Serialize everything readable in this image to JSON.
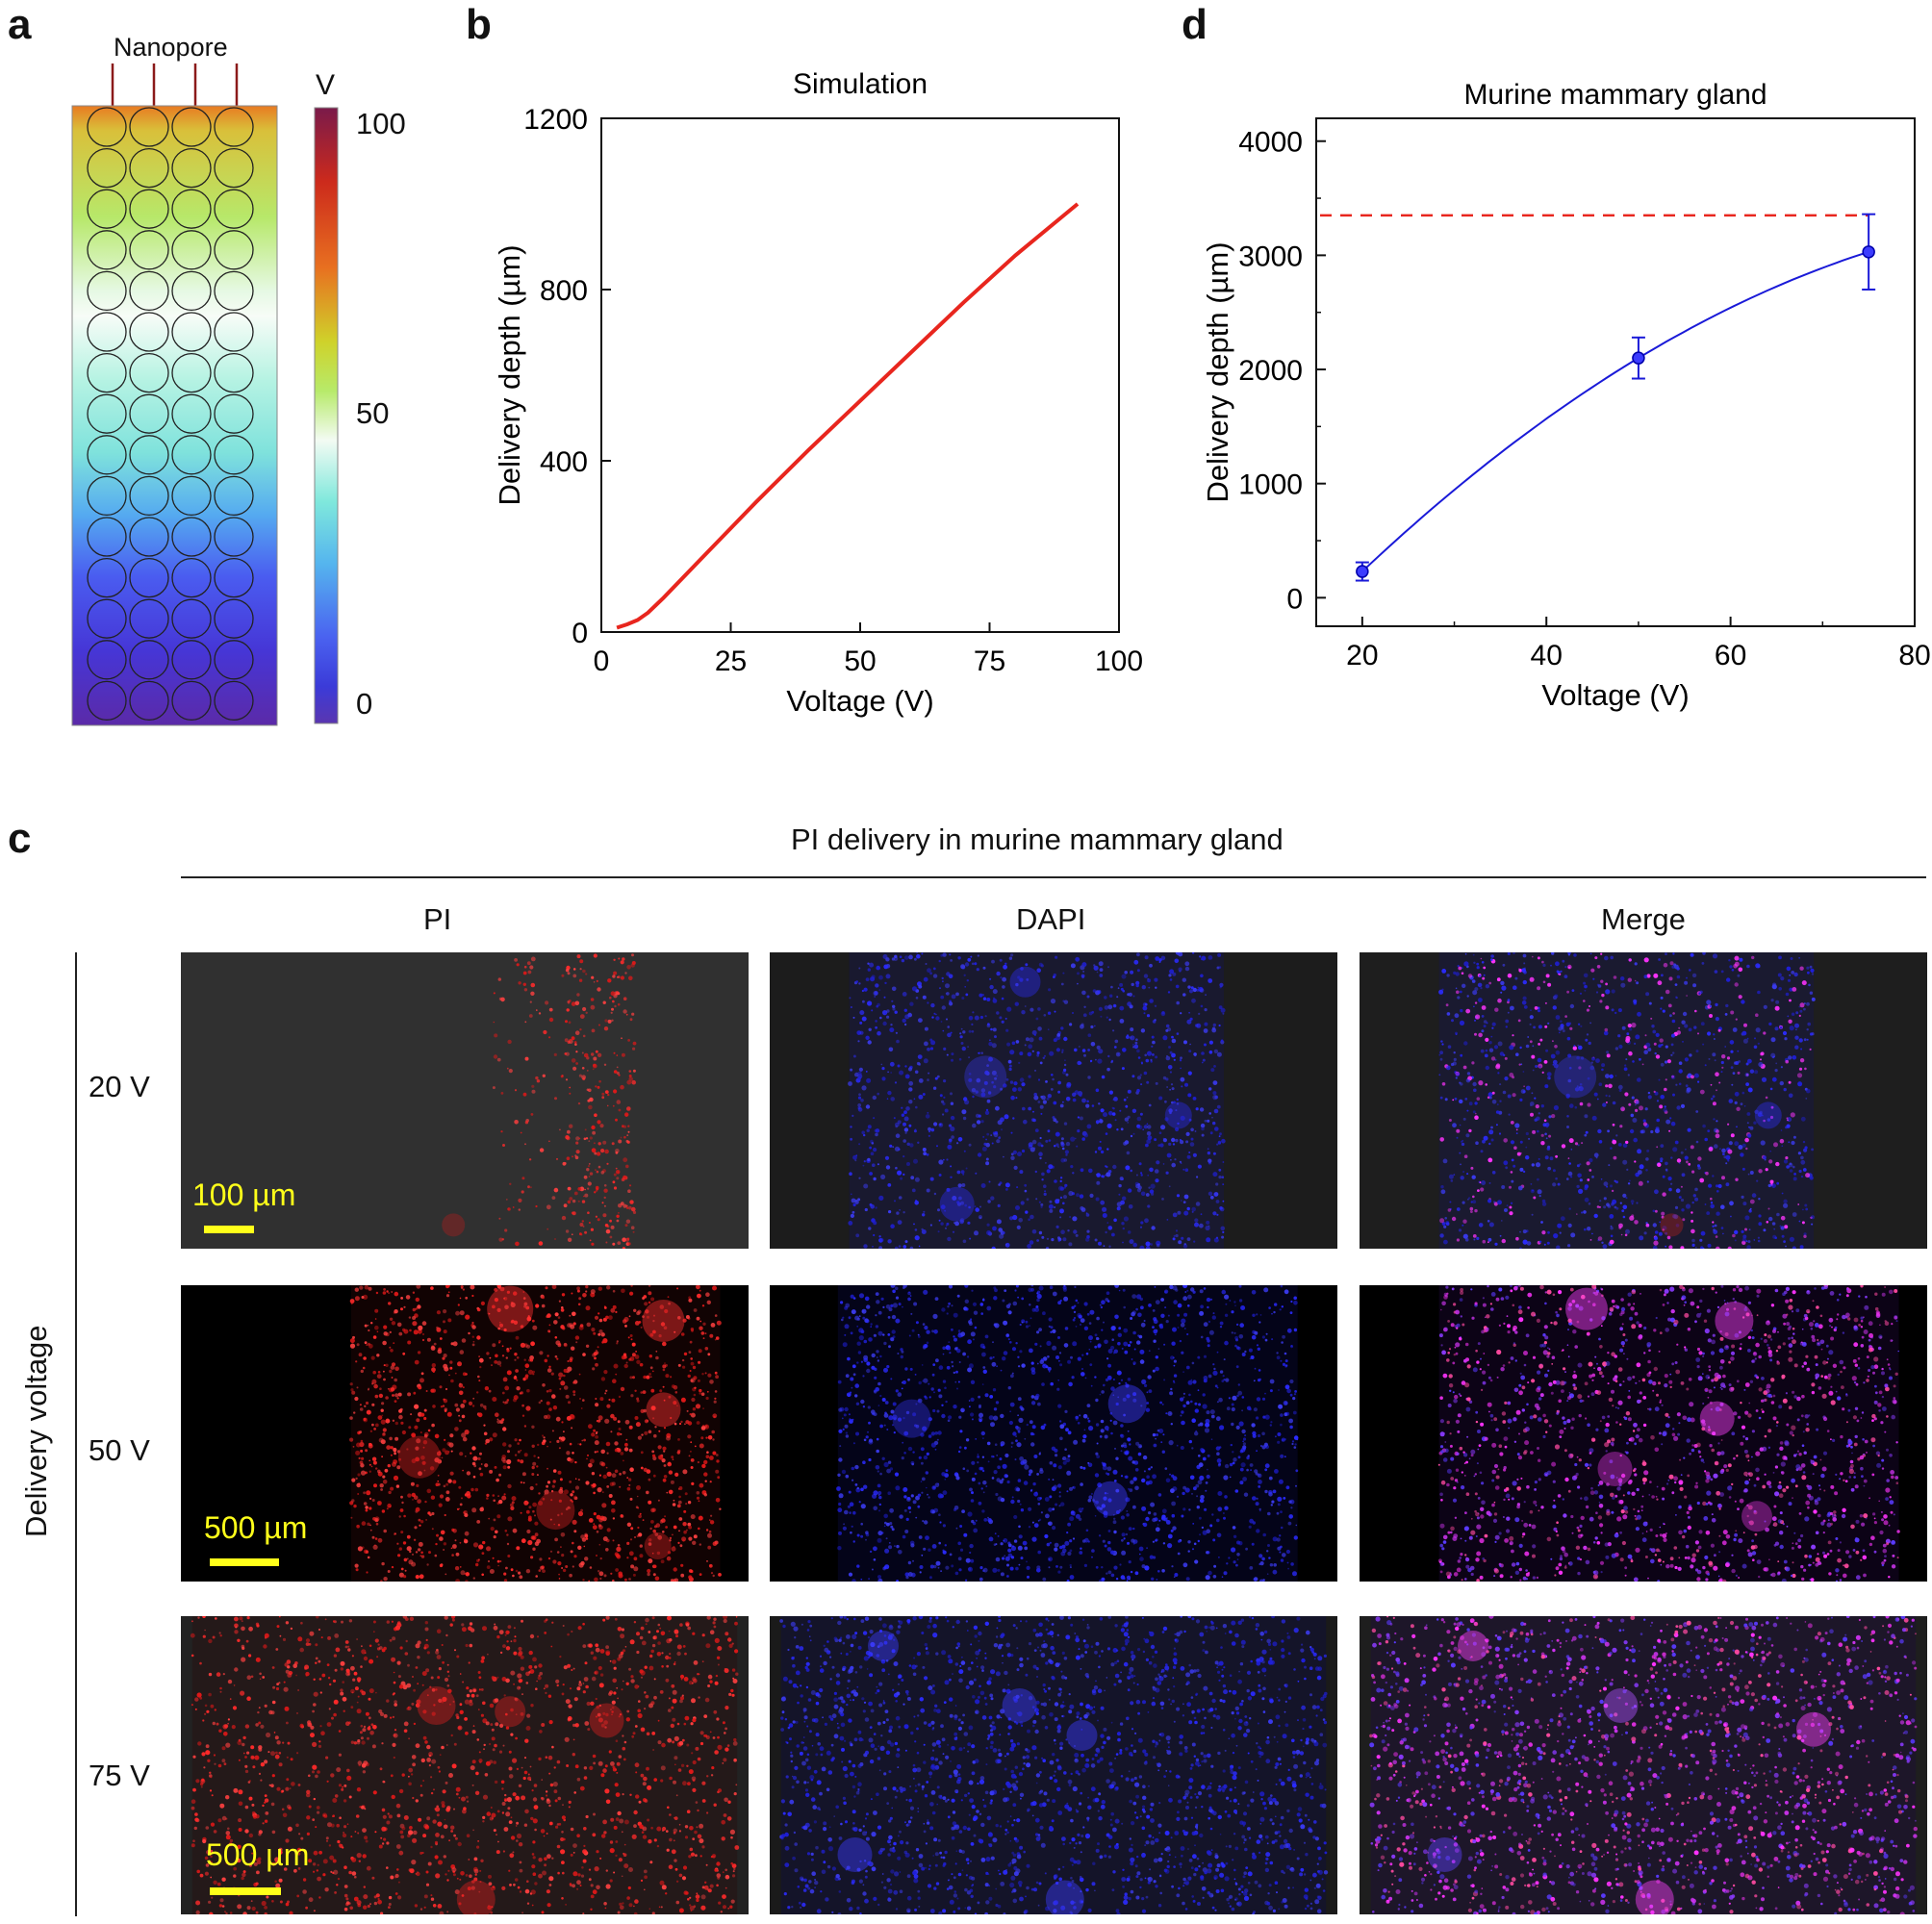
{
  "panels": {
    "a": "a",
    "b": "b",
    "c": "c",
    "d": "d"
  },
  "panel_a": {
    "nanopore_label": "Nanopore",
    "colorbar_unit": "V",
    "colorbar_ticks": [
      "100",
      "50",
      "0"
    ],
    "colormap": [
      "#7a1a4a",
      "#cc2a1c",
      "#e87020",
      "#cfd22a",
      "#b7ea6a",
      "#f3fbf3",
      "#7fe8dc",
      "#55b5ee",
      "#4a62f0",
      "#3b3bd8",
      "#5a36b0"
    ]
  },
  "chart_data": [
    {
      "id": "b",
      "type": "line",
      "title": "Simulation",
      "xlabel": "Voltage (V)",
      "ylabel": "Delivery depth (µm)",
      "xlim": [
        0,
        100
      ],
      "ylim": [
        0,
        1200
      ],
      "xticks": [
        "0",
        "25",
        "50",
        "75",
        "100"
      ],
      "yticks": [
        "0",
        "400",
        "800",
        "1200"
      ],
      "series": [
        {
          "color": "#e8261e",
          "x": [
            3,
            5,
            7,
            9,
            12,
            20,
            30,
            40,
            50,
            60,
            70,
            80,
            92
          ],
          "y": [
            10,
            18,
            28,
            45,
            80,
            180,
            305,
            425,
            540,
            655,
            770,
            880,
            1000
          ]
        }
      ]
    },
    {
      "id": "d",
      "type": "scatter",
      "title": "Murine mammary gland",
      "xlabel": "Voltage (V)",
      "ylabel": "Delivery depth (µm)",
      "xlim": [
        15,
        80
      ],
      "ylim": [
        -250,
        4200
      ],
      "xticks": [
        "20",
        "40",
        "60",
        "80"
      ],
      "yticks": [
        "0",
        "1000",
        "2000",
        "3000",
        "4000"
      ],
      "points": {
        "x": [
          20,
          50,
          75
        ],
        "y": [
          230,
          2100,
          3030
        ],
        "err": [
          80,
          180,
          330
        ]
      },
      "fit_color": "#1a1ad8",
      "reference_line": {
        "y": 3350,
        "color": "#e8261e",
        "style": "dashed"
      }
    }
  ],
  "panel_c": {
    "title": "PI delivery in murine mammary gland",
    "columns": [
      "PI",
      "DAPI",
      "Merge"
    ],
    "row_axis_label": "Delivery voltage",
    "rows": [
      {
        "label": "20 V",
        "scale": "100 µm"
      },
      {
        "label": "50 V",
        "scale": "500 µm"
      },
      {
        "label": "75 V",
        "scale": "500 µm"
      }
    ]
  }
}
